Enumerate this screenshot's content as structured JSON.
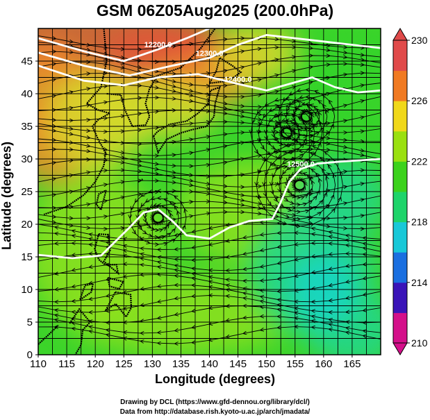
{
  "title": "GSM 06Z05Aug2025 (200.0hPa)",
  "axes": {
    "xlabel": "Longitude (degrees)",
    "ylabel": "Latitude  (degrees)",
    "xlim": [
      110,
      170
    ],
    "ylim": [
      0,
      50
    ],
    "xticks": [
      "110",
      "115",
      "120",
      "125",
      "130",
      "135",
      "140",
      "145",
      "150",
      "155",
      "160",
      "165"
    ],
    "yticks": [
      "0",
      "5",
      "10",
      "15",
      "20",
      "25",
      "30",
      "35",
      "40",
      "45"
    ],
    "grid": true
  },
  "colorbar": {
    "ticks": [
      "230",
      "226",
      "222",
      "218",
      "214",
      "210"
    ],
    "range": [
      210,
      230
    ],
    "colors": [
      "#d4108a",
      "#3a14b8",
      "#1a6fe0",
      "#18c8d8",
      "#1ed46a",
      "#3cd21c",
      "#9ae010",
      "#f0d81a",
      "#f07a22",
      "#e04a4a"
    ]
  },
  "contours": [
    {
      "label": "12200.0",
      "lat": 47.5
    },
    {
      "label": "12300.0",
      "lat": 45
    },
    {
      "label": "12400.0",
      "lat": 42.5
    },
    {
      "label": "12500.0",
      "lat": 30
    }
  ],
  "field_colors": {
    "warm": "#e2563a",
    "orange": "#f08a2a",
    "yellow": "#d8d82c",
    "green": "#34d42a",
    "lime": "#8ee01e",
    "teal": "#22d68e",
    "cyan": "#18d6c8"
  },
  "credits": {
    "line1": "Drawing by DCL (https://www.gfd-dennou.org/library/dcl/)",
    "line2": "Data from http://database.rish.kyoto-u.ac.jp/arch/jmadata/"
  }
}
